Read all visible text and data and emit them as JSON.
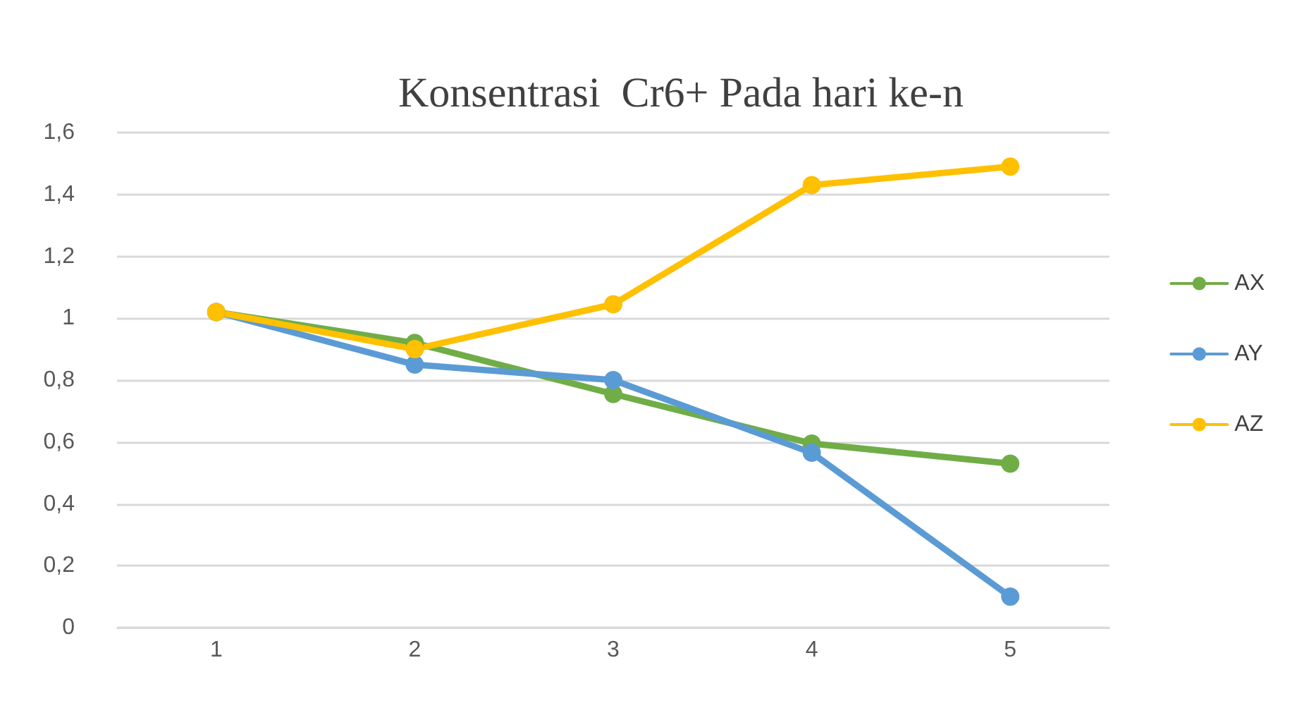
{
  "chart_data": {
    "type": "line",
    "title": "Konsentrasi  Cr6+ Pada hari ke-n",
    "categories": [
      "1",
      "2",
      "3",
      "4",
      "5"
    ],
    "series": [
      {
        "name": "AX",
        "color": "#70ad47",
        "values": [
          1.02,
          0.92,
          0.755,
          0.595,
          0.53
        ]
      },
      {
        "name": "AY",
        "color": "#5b9bd5",
        "values": [
          1.02,
          0.85,
          0.8,
          0.565,
          0.1
        ]
      },
      {
        "name": "AZ",
        "color": "#ffc000",
        "values": [
          1.02,
          0.9,
          1.045,
          1.43,
          1.49
        ]
      }
    ],
    "ylim": [
      0,
      1.6
    ],
    "yticks": [
      0,
      {
        "value": 0.2,
        "label": "0,2"
      },
      {
        "value": 0.4,
        "label": "0,4"
      },
      {
        "value": 0.6,
        "label": "0,6"
      },
      {
        "value": 0.8,
        "label": "0,8"
      },
      1,
      {
        "value": 1.2,
        "label": "1,2"
      },
      {
        "value": 1.4,
        "label": "1,4"
      },
      {
        "value": 1.6,
        "label": "1,6"
      }
    ],
    "grid": "y",
    "legend": "right",
    "marker": "circle",
    "line_style": "solid"
  }
}
